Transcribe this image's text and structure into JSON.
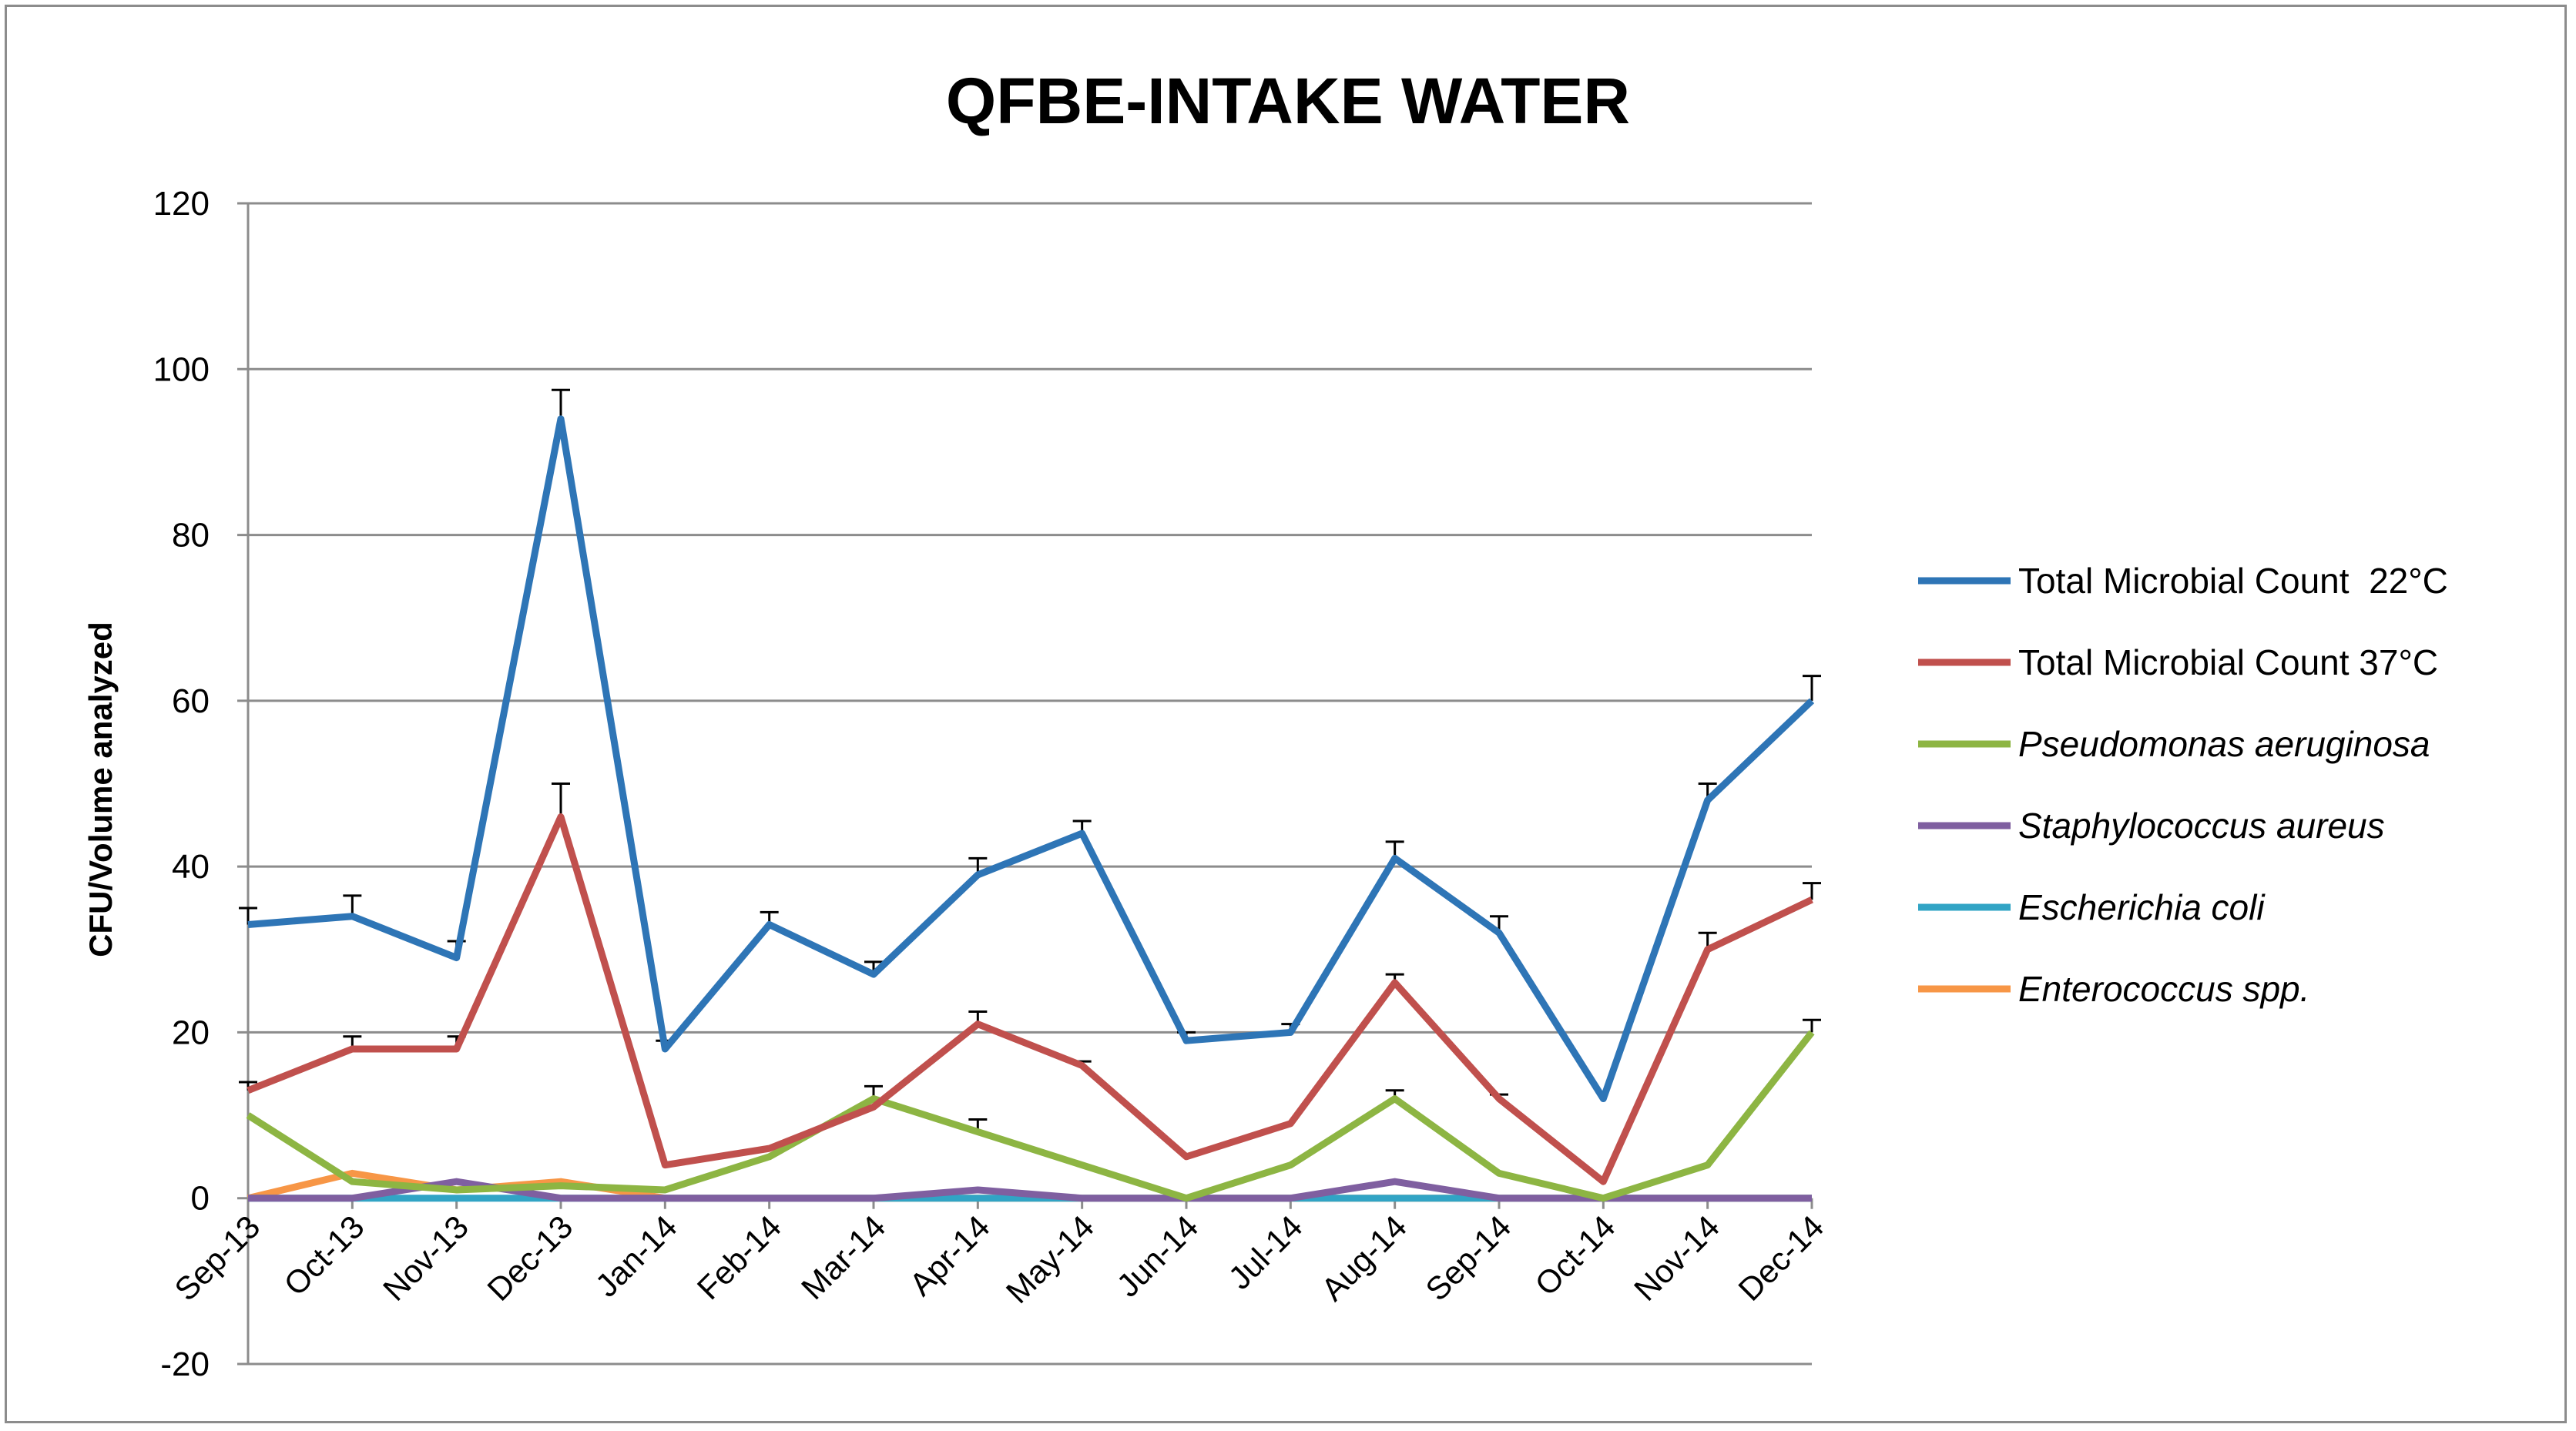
{
  "chart_data": {
    "type": "line",
    "title": "QFBE-INTAKE WATER",
    "xlabel": "",
    "ylabel": "CFU/Volume analyzed",
    "ylim": [
      -20,
      120
    ],
    "yticks": [
      -20,
      0,
      20,
      40,
      60,
      80,
      100,
      120
    ],
    "grid": "horizontal",
    "legend": "right",
    "categories": [
      "Sep-13",
      "Oct-13",
      "Nov-13",
      "Dec-13",
      "Jan-14",
      "Feb-14",
      "Mar-14",
      "Apr-14",
      "May-14",
      "Jun-14",
      "Jul-14",
      "Aug-14",
      "Sep-14",
      "Oct-14",
      "Nov-14",
      "Dec-14"
    ],
    "series": [
      {
        "name": "Total Microbial Count  22°C",
        "italic": false,
        "color": "#2e75b6",
        "values": [
          33,
          34,
          29,
          94,
          18,
          33,
          27,
          39,
          44,
          19,
          20,
          41,
          32,
          12,
          48,
          60
        ],
        "errors": [
          2,
          2.5,
          2,
          3.5,
          1,
          1.5,
          1.5,
          2,
          1.5,
          1,
          1,
          2,
          2,
          0,
          2,
          3
        ]
      },
      {
        "name": "Total Microbial Count 37°C",
        "italic": false,
        "color": "#c0504d",
        "values": [
          13,
          18,
          18,
          46,
          4,
          6,
          11,
          21,
          16,
          5,
          9,
          26,
          12,
          2,
          30,
          36
        ],
        "errors": [
          1,
          1.5,
          1.5,
          4,
          0,
          0,
          0,
          1.5,
          0.5,
          0,
          0,
          1,
          0.5,
          0,
          2,
          2
        ]
      },
      {
        "name": "Pseudomonas aeruginosa",
        "italic": true,
        "color": "#8db543",
        "values": [
          10,
          2,
          1,
          1.5,
          1,
          5,
          12,
          8,
          4,
          0,
          4,
          12,
          3,
          0,
          4,
          20
        ],
        "errors": [
          0,
          0,
          0,
          0,
          0,
          0,
          1.5,
          1.5,
          0,
          0,
          0,
          1,
          0,
          0,
          0,
          1.5
        ]
      },
      {
        "name": "Staphylococcus aureus",
        "italic": true,
        "color": "#7f5fa0",
        "values": [
          0,
          0,
          2,
          0,
          0,
          0,
          0,
          1,
          0,
          0,
          0,
          2,
          0,
          0,
          0,
          0
        ],
        "errors": [
          0,
          0,
          0,
          0,
          0,
          0,
          0,
          0,
          0,
          0,
          0,
          0,
          0,
          0,
          0,
          0
        ]
      },
      {
        "name": "Escherichia coli",
        "italic": true,
        "color": "#31a4c5",
        "values": [
          0,
          0,
          0,
          0,
          0,
          0,
          0,
          0,
          0,
          0,
          0,
          0,
          0,
          0,
          0,
          0
        ],
        "errors": [
          0,
          0,
          0,
          0,
          0,
          0,
          0,
          0,
          0,
          0,
          0,
          0,
          0,
          0,
          0,
          0
        ]
      },
      {
        "name": "Enterococcus spp.",
        "italic": true,
        "color": "#f79646",
        "values": [
          0,
          3,
          1,
          2,
          0,
          0,
          0,
          0,
          0,
          0,
          0,
          0,
          0,
          0,
          0,
          0
        ],
        "errors": [
          0,
          0,
          0,
          0,
          0,
          0,
          0,
          0,
          0,
          0,
          0,
          0,
          0,
          0,
          0,
          0
        ]
      }
    ]
  }
}
